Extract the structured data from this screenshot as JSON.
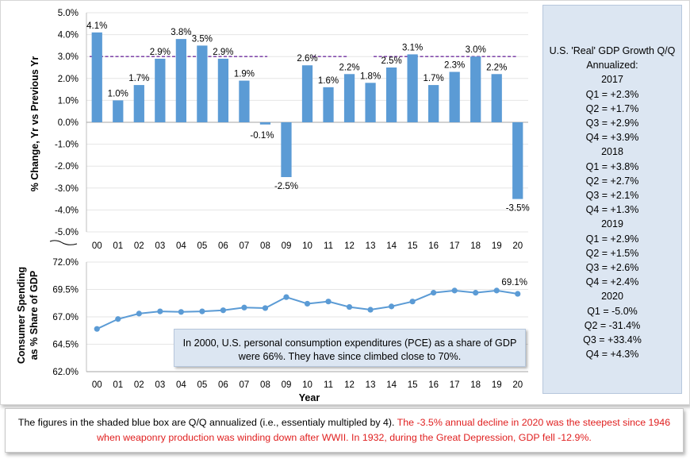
{
  "chart_data": [
    {
      "type": "bar",
      "ylabel": "% Change, Yr vs Previous Yr",
      "ylim": [
        -5.0,
        5.0
      ],
      "yticks": [
        "5.0%",
        "4.0%",
        "3.0%",
        "2.0%",
        "1.0%",
        "0.0%",
        "-1.0%",
        "-2.0%",
        "-3.0%",
        "-4.0%",
        "-5.0%"
      ],
      "categories": [
        "00",
        "01",
        "02",
        "03",
        "04",
        "05",
        "06",
        "07",
        "08",
        "09",
        "10",
        "11",
        "12",
        "13",
        "14",
        "15",
        "16",
        "17",
        "18",
        "19",
        "20"
      ],
      "values": [
        4.1,
        1.0,
        1.7,
        2.9,
        3.8,
        3.5,
        2.9,
        1.9,
        -0.1,
        -2.5,
        2.6,
        1.6,
        2.2,
        1.8,
        2.5,
        3.1,
        1.7,
        2.3,
        3.0,
        2.2,
        -3.5
      ],
      "labels": [
        "4.1%",
        "1.0%",
        "1.7%",
        "2.9%",
        "3.8%",
        "3.5%",
        "2.9%",
        "1.9%",
        "-0.1%",
        "-2.5%",
        "2.6%",
        "1.6%",
        "2.2%",
        "1.8%",
        "2.5%",
        "3.1%",
        "1.7%",
        "2.3%",
        "3.0%",
        "2.2%",
        "-3.5%"
      ],
      "reference_line": 3.0,
      "color": "#5b9bd5",
      "reference_color": "#7030a0"
    },
    {
      "type": "line",
      "ylabel": "Consumer Spending as % Share of GDP",
      "xlabel": "Year",
      "ylim": [
        62.0,
        72.0
      ],
      "yticks": [
        "72.0%",
        "69.5%",
        "67.0%",
        "64.5%",
        "62.0%"
      ],
      "categories": [
        "00",
        "01",
        "02",
        "03",
        "04",
        "05",
        "06",
        "07",
        "08",
        "09",
        "10",
        "11",
        "12",
        "13",
        "14",
        "15",
        "16",
        "17",
        "18",
        "19",
        "20"
      ],
      "values": [
        65.9,
        66.8,
        67.3,
        67.5,
        67.45,
        67.5,
        67.6,
        67.85,
        67.8,
        68.8,
        68.2,
        68.4,
        67.9,
        67.65,
        67.95,
        68.4,
        69.2,
        69.4,
        69.2,
        69.4,
        69.1
      ],
      "end_label": "69.1%",
      "color": "#5b9bd5"
    }
  ],
  "side_box": {
    "lines": [
      "U.S. 'Real' GDP Growth Q/Q",
      "Annualized:",
      "2017",
      "Q1 = +2.3%",
      "Q2 = +1.7%",
      "Q3 = +2.9%",
      "Q4 = +3.9%",
      "2018",
      "Q1 = +3.8%",
      "Q2 = +2.7%",
      "Q3 = +2.1%",
      "Q4 = +1.3%",
      "2019",
      "Q1 = +2.9%",
      "Q2 = +1.5%",
      "Q3 = +2.6%",
      "Q4 = +2.4%",
      "2020",
      "Q1 = -5.0%",
      "Q2 = -31.4%",
      "Q3 = +33.4%",
      "Q4 = +4.3%"
    ]
  },
  "note_box": {
    "text": "In 2000, U.S. personal consumption expenditures (PCE) as a share of GDP were 66%. They have since climbed close to 70%."
  },
  "footer": {
    "text_black": "The figures in the shaded blue box are Q/Q annualized (i.e., essentialy multipled by 4). ",
    "text_red": "The -3.5% annual decline in 2020 was the steepest since 1946 when weaponry production was winding down after WWII. In 1932, during the Great Depression, GDP fell -12.9%."
  }
}
